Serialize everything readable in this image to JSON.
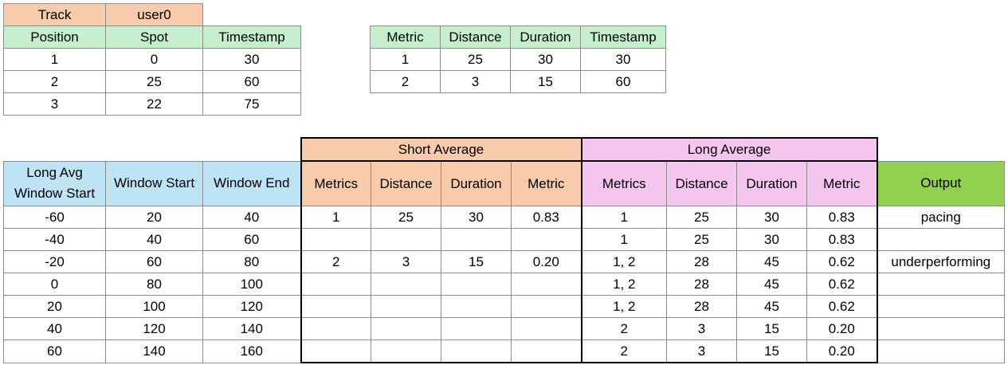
{
  "track_table": {
    "track_label": "Track",
    "track_value": "user0",
    "headers": [
      "Position",
      "Spot",
      "Timestamp"
    ],
    "rows": [
      [
        "1",
        "0",
        "30"
      ],
      [
        "2",
        "25",
        "60"
      ],
      [
        "3",
        "22",
        "75"
      ]
    ]
  },
  "metric_table": {
    "headers": [
      "Metric",
      "Distance",
      "Duration",
      "Timestamp"
    ],
    "rows": [
      [
        "1",
        "25",
        "30",
        "30"
      ],
      [
        "2",
        "3",
        "15",
        "60"
      ]
    ]
  },
  "main_table": {
    "group_short": "Short Average",
    "group_long": "Long Average",
    "headers": {
      "long_avg_window_start": "Long Avg Window Start",
      "window_start": "Window Start",
      "window_end": "Window End",
      "short_metrics": "Metrics",
      "short_distance": "Distance",
      "short_duration": "Duration",
      "short_metric": "Metric",
      "long_metrics": "Metrics",
      "long_distance": "Distance",
      "long_duration": "Duration",
      "long_metric": "Metric",
      "output": "Output"
    },
    "rows": [
      [
        "-60",
        "20",
        "40",
        "1",
        "25",
        "30",
        "0.83",
        "1",
        "25",
        "30",
        "0.83",
        "pacing"
      ],
      [
        "-40",
        "40",
        "60",
        "",
        "",
        "",
        "",
        "1",
        "25",
        "30",
        "0.83",
        ""
      ],
      [
        "-20",
        "60",
        "80",
        "2",
        "3",
        "15",
        "0.20",
        "1, 2",
        "28",
        "45",
        "0.62",
        "underperforming"
      ],
      [
        "0",
        "80",
        "100",
        "",
        "",
        "",
        "",
        "1, 2",
        "28",
        "45",
        "0.62",
        ""
      ],
      [
        "20",
        "100",
        "120",
        "",
        "",
        "",
        "",
        "1, 2",
        "28",
        "45",
        "0.62",
        ""
      ],
      [
        "40",
        "120",
        "140",
        "",
        "",
        "",
        "",
        "2",
        "3",
        "15",
        "0.20",
        ""
      ],
      [
        "60",
        "140",
        "160",
        "",
        "",
        "",
        "",
        "2",
        "3",
        "15",
        "0.20",
        ""
      ]
    ]
  },
  "colors": {
    "peach": "#f8cbad",
    "green": "#c6efce",
    "blue": "#bde3f5",
    "pink": "#f4c6ef",
    "output_green": "#92d050"
  }
}
